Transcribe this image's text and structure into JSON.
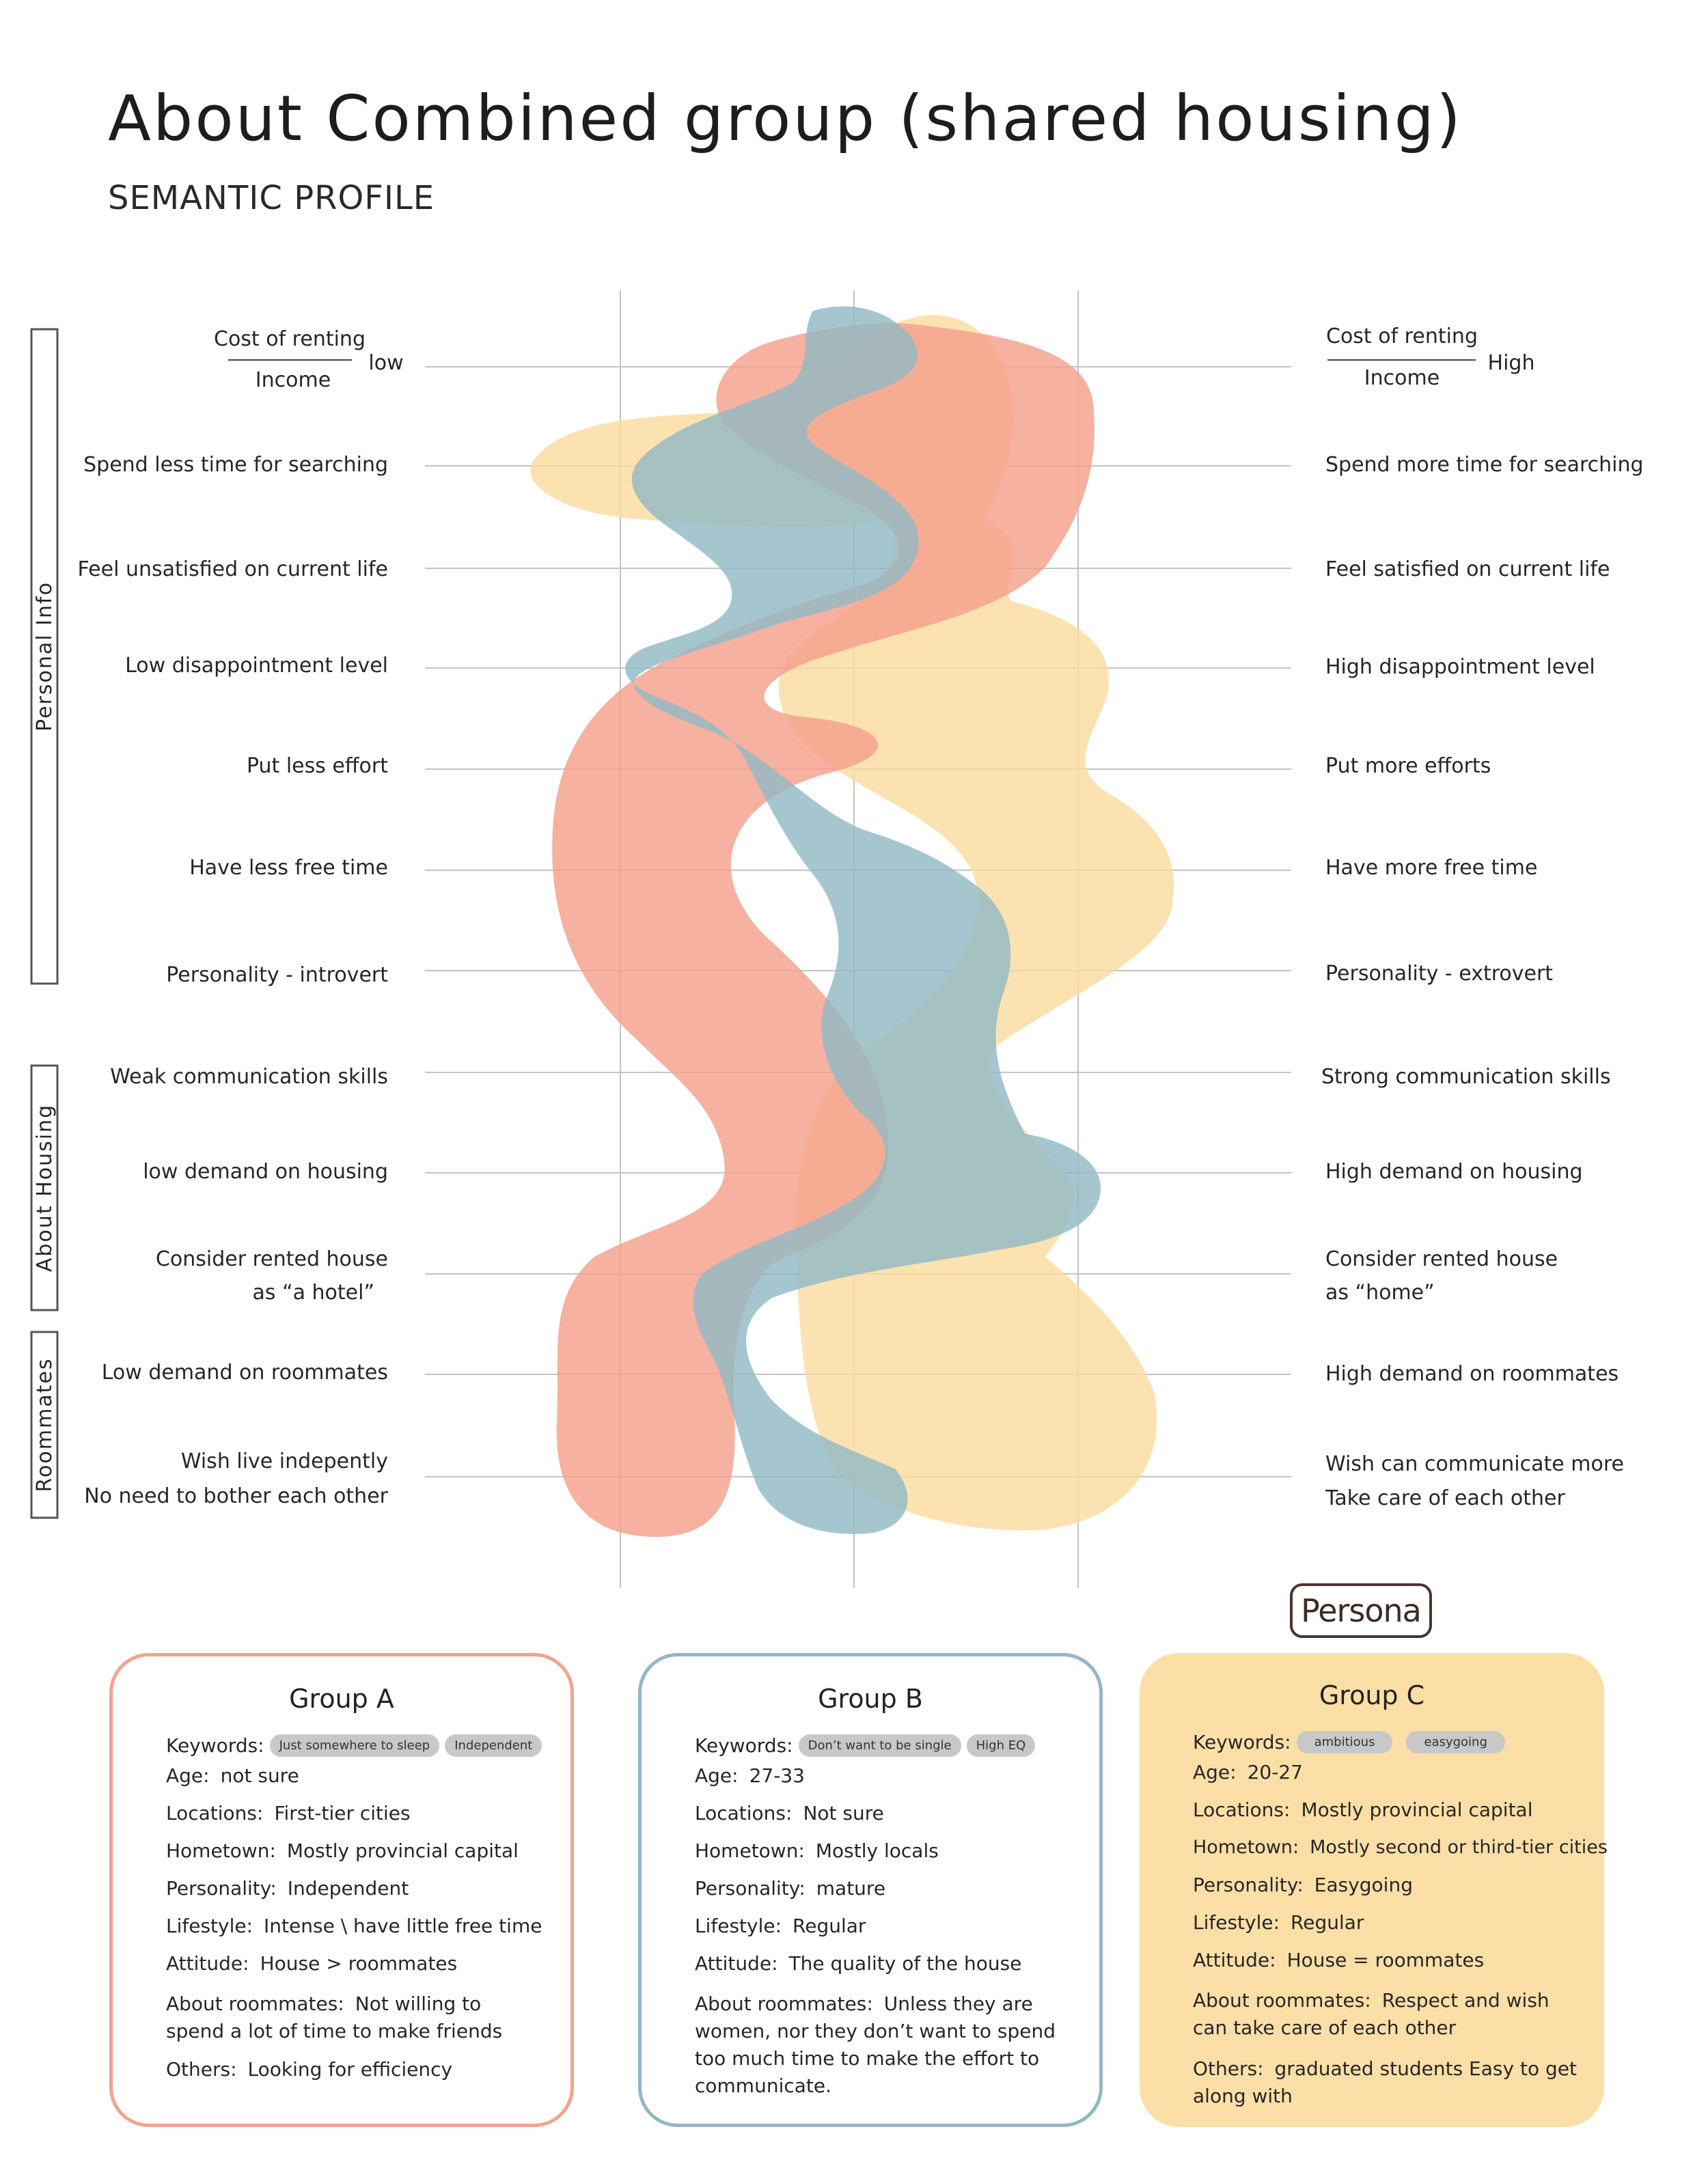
{
  "header": {
    "title": "About Combined group (shared housing)",
    "subtitle": "SEMANTIC PROFILE"
  },
  "sections": [
    "Personal Info",
    "About Housing",
    "Roommates"
  ],
  "scales": [
    {
      "left": "Cost of renting",
      "left_den": "Income",
      "left_suffix": "low",
      "right": "Cost of renting",
      "right_den": "Income",
      "right_suffix": "High"
    },
    {
      "left": "Spend less time for searching",
      "right": "Spend more time for searching"
    },
    {
      "left": "Feel unsatisfied on current life",
      "right": "Feel satisfied on current life"
    },
    {
      "left": "Low disappointment level",
      "right": "High disappointment level"
    },
    {
      "left": "Put less effort",
      "right": "Put more efforts"
    },
    {
      "left": "Have less free time",
      "right": "Have more free time"
    },
    {
      "left": "Personality - introvert",
      "right": "Personality - extrovert"
    },
    {
      "left": "Weak communication skills",
      "right": "Strong communication skills"
    },
    {
      "left": "low demand on housing",
      "right": "High demand on housing"
    },
    {
      "left": "Consider rented house",
      "left2": "as “a hotel”",
      "right": "Consider rented house",
      "right2": "as “home”"
    },
    {
      "left": "Low demand on roommates",
      "right": "High demand on roommates"
    },
    {
      "left": "Wish live indepently",
      "left2": "No need to bother each other",
      "right": "Wish can communicate more",
      "right2": "Take care of each other"
    }
  ],
  "colors": {
    "group_a": "#f4a08c",
    "group_b": "#93b9c4",
    "group_c": "#fcdca0",
    "grid": "#c4c4c4"
  },
  "persona_label": "Persona",
  "groups": [
    {
      "title": "Group A",
      "keywords_label": "Keywords:",
      "keywords": [
        "Just somewhere to sleep",
        "Independent"
      ],
      "rows": [
        {
          "label": "Age:",
          "value": "not sure"
        },
        {
          "label": "Locations:",
          "value": "First-tier cities"
        },
        {
          "label": "Hometown:",
          "value": "Mostly provincial capital"
        },
        {
          "label": "Personality:",
          "value": "Independent"
        },
        {
          "label": "Lifestyle:",
          "value": "Intense \\ have little free time"
        },
        {
          "label": "Attitude:",
          "value": "House > roommates"
        },
        {
          "label": "About roommates:",
          "value": "Not willing to spend a lot of time to make friends"
        },
        {
          "label": "Others:",
          "value": "Looking for efficiency"
        }
      ]
    },
    {
      "title": "Group B",
      "keywords_label": "Keywords:",
      "keywords": [
        "Don’t want to be single",
        "High EQ"
      ],
      "rows": [
        {
          "label": "Age:",
          "value": "27-33"
        },
        {
          "label": "Locations:",
          "value": "Not sure"
        },
        {
          "label": "Hometown:",
          "value": "Mostly locals"
        },
        {
          "label": "Personality:",
          "value": "mature"
        },
        {
          "label": "Lifestyle:",
          "value": "Regular"
        },
        {
          "label": "Attitude:",
          "value": "The quality of the house"
        },
        {
          "label": "About roommates:",
          "value": "Unless they are women, nor they don’t want to spend too much time to make the effort to communicate."
        }
      ]
    },
    {
      "title": "Group C",
      "keywords_label": "Keywords:",
      "keywords": [
        "ambitious",
        "easygoing"
      ],
      "rows": [
        {
          "label": "Age:",
          "value": "20-27"
        },
        {
          "label": "Locations:",
          "value": "Mostly provincial capital"
        },
        {
          "label": "Hometown:",
          "value": "Mostly second or third-tier cities"
        },
        {
          "label": "Personality:",
          "value": "Easygoing"
        },
        {
          "label": "Lifestyle:",
          "value": "Regular"
        },
        {
          "label": "Attitude:",
          "value": "House = roommates"
        },
        {
          "label": "About roommates:",
          "value": "Respect and wish can take care of each other"
        },
        {
          "label": "Others:",
          "value": "graduated students Easy to get along with"
        }
      ]
    }
  ]
}
